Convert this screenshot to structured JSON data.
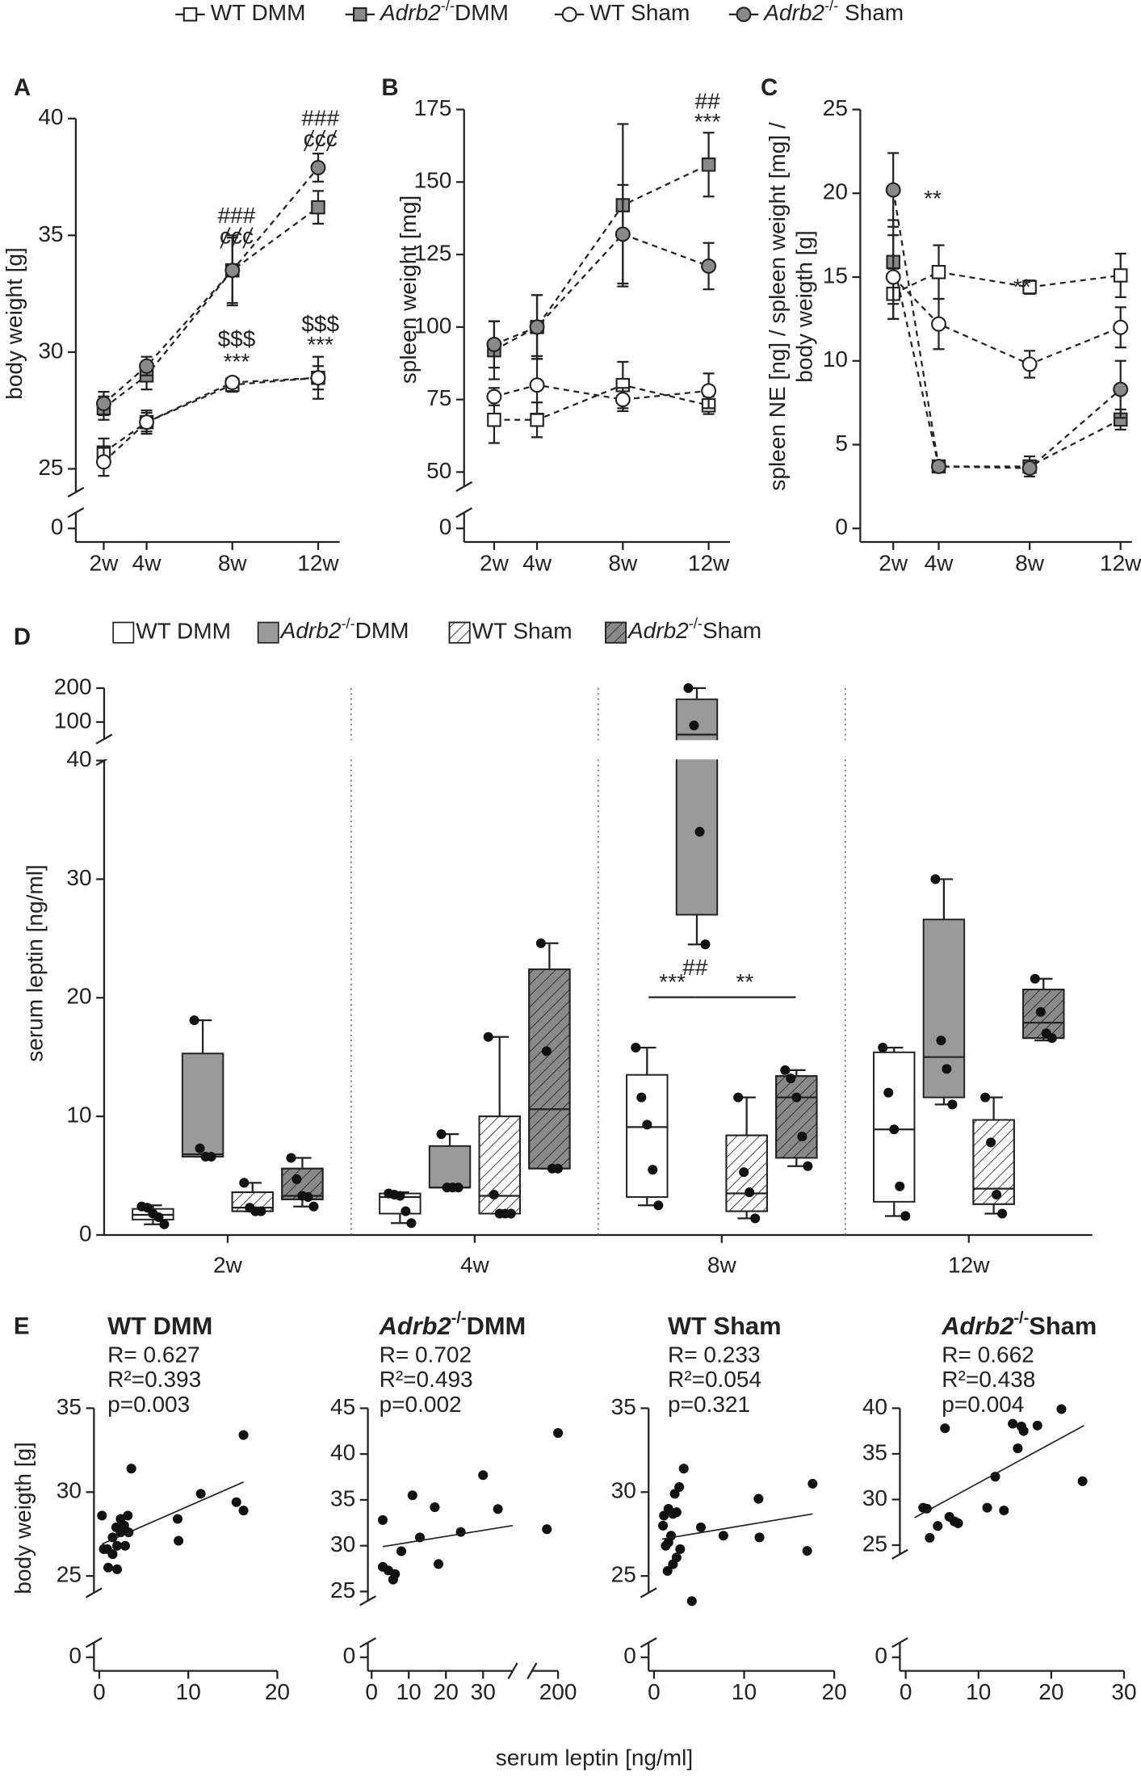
{
  "legend": [
    {
      "name": "WT DMM",
      "marker": "square",
      "color": "#ffffff"
    },
    {
      "name": "Adrb2-/-DMM",
      "marker": "square",
      "color": "#8a8a8a"
    },
    {
      "name": "WT Sham",
      "marker": "circle",
      "color": "#ffffff"
    },
    {
      "name": "Adrb2-/- Sham",
      "marker": "circle",
      "color": "#8a8a8a"
    }
  ],
  "e_xlabel": "serum leptin [ng/ml]",
  "chart_data": [
    {
      "type": "line",
      "panel": "A",
      "ylabel": "body weight [g]",
      "line_style": "dashed",
      "x": [
        2,
        4,
        8,
        12
      ],
      "xlim": [
        0.7,
        13
      ],
      "xticks": [
        {
          "value": 2,
          "label": "2w"
        },
        {
          "value": 4,
          "label": "4w"
        },
        {
          "value": 8,
          "label": "8w"
        },
        {
          "value": 12,
          "label": "12w"
        }
      ],
      "ylim": [
        0,
        40
      ],
      "ybreak": [
        1,
        24
      ],
      "yticks": [
        0,
        25,
        30,
        35,
        40
      ],
      "series": [
        {
          "values": [
            25.7,
            27.0,
            28.6,
            28.9
          ],
          "errors": [
            0.6,
            0.5,
            0.3,
            0.9
          ]
        },
        {
          "values": [
            27.6,
            29.0,
            33.5,
            36.2
          ],
          "errors": [
            0.5,
            0.6,
            1.5,
            0.7
          ]
        },
        {
          "values": [
            25.3,
            27.0,
            28.7,
            28.9
          ],
          "errors": [
            0.6,
            0.4,
            0.2,
            0.5
          ]
        },
        {
          "values": [
            27.8,
            29.4,
            33.5,
            37.9
          ],
          "errors": [
            0.5,
            0.4,
            1.4,
            0.6
          ]
        }
      ],
      "annotations": [
        "###",
        "ȼȼȼ",
        "$$$",
        "***",
        "###",
        "ȼȼȼ",
        "$$$",
        "***"
      ]
    },
    {
      "type": "line",
      "panel": "B",
      "ylabel": "spleen weight [mg]",
      "line_style": "dashed",
      "x": [
        2,
        4,
        8,
        12
      ],
      "xlim": [
        0.6,
        13
      ],
      "xticks": [
        {
          "value": 2,
          "label": "2w"
        },
        {
          "value": 4,
          "label": "4w"
        },
        {
          "value": 8,
          "label": "8w"
        },
        {
          "value": 12,
          "label": "12w"
        }
      ],
      "ylim": [
        0,
        175
      ],
      "ybreak": [
        5,
        45
      ],
      "yticks": [
        0,
        50,
        75,
        100,
        125,
        150,
        175
      ],
      "series": [
        {
          "values": [
            68,
            68,
            80,
            73
          ],
          "errors": [
            8,
            6,
            8,
            3
          ]
        },
        {
          "values": [
            92,
            100,
            142,
            156
          ],
          "errors": [
            10,
            11,
            28,
            11
          ]
        },
        {
          "values": [
            76,
            80,
            75,
            78
          ],
          "errors": [
            3,
            10,
            4,
            6
          ]
        },
        {
          "values": [
            94,
            100,
            132,
            121
          ],
          "errors": [
            8,
            11,
            17,
            8
          ]
        }
      ],
      "annotations": [
        "##",
        "***"
      ]
    },
    {
      "type": "line",
      "panel": "C",
      "ylabel": [
        "spleen NE [ng] / spleen weight [mg] /",
        "body weigth [g]"
      ],
      "line_style": "dashed",
      "x": [
        2,
        4,
        8,
        12
      ],
      "xlim": [
        0.55,
        12.5
      ],
      "xticks": [
        {
          "value": 2,
          "label": "2w"
        },
        {
          "value": 4,
          "label": "4w"
        },
        {
          "value": 8,
          "label": "8w"
        },
        {
          "value": 12,
          "label": "12w"
        }
      ],
      "ylim": [
        0,
        25
      ],
      "yticks": [
        0,
        5,
        10,
        15,
        20,
        25
      ],
      "series": [
        {
          "values": [
            14.0,
            15.3,
            14.4,
            15.1
          ],
          "errors": [
            1.5,
            1.6,
            0.4,
            1.3
          ]
        },
        {
          "values": [
            15.9,
            3.7,
            3.7,
            6.5
          ],
          "errors": [
            2.5,
            0.3,
            0.6,
            0.6
          ]
        },
        {
          "values": [
            15.0,
            12.2,
            9.8,
            12.0
          ],
          "errors": [
            2.5,
            1.5,
            0.8,
            1.2
          ]
        },
        {
          "values": [
            20.2,
            3.7,
            3.6,
            8.3
          ],
          "errors": [
            2.2,
            0.3,
            0.3,
            1.7
          ]
        }
      ],
      "annotations": [
        "**",
        "**"
      ]
    },
    {
      "type": "box",
      "panel": "D",
      "ylabel": "serum leptin [ng/ml]",
      "categories": [
        "2w",
        "4w",
        "8w",
        "12w"
      ],
      "ylim": [
        0,
        200
      ],
      "ybreak": [
        40,
        50
      ],
      "yticks": [
        0,
        10,
        20,
        30,
        40,
        100,
        200
      ],
      "series": [
        {
          "name": "WT DMM",
          "color": "#ffffff",
          "hatch": false,
          "boxes": [
            {
              "min": 0.9,
              "q1": 1.3,
              "median": 1.7,
              "q3": 2.2,
              "max": 2.5,
              "points": [
                2.4,
                2.3,
                1.8,
                1.5,
                0.9
              ]
            },
            {
              "min": 1.0,
              "q1": 1.8,
              "median": 3.2,
              "q3": 3.5,
              "max": 3.6,
              "points": [
                3.5,
                3.4,
                3.3,
                2.0,
                1.0
              ]
            },
            {
              "min": 2.5,
              "q1": 3.2,
              "median": 9.1,
              "q3": 13.5,
              "max": 15.8,
              "points": [
                15.8,
                11.6,
                9.3,
                5.5,
                2.5
              ]
            },
            {
              "min": 1.6,
              "q1": 2.8,
              "median": 8.9,
              "q3": 15.4,
              "max": 15.8,
              "points": [
                15.8,
                12.0,
                8.9,
                4.1,
                1.6
              ]
            }
          ]
        },
        {
          "name": "Adrb2-/-DMM",
          "color": "#9a9a9a",
          "hatch": false,
          "boxes": [
            {
              "min": 6.6,
              "q1": 6.6,
              "median": 6.8,
              "q3": 15.3,
              "max": 18.1,
              "points": [
                18.1,
                7.3,
                6.6,
                6.6
              ]
            },
            {
              "min": 4.0,
              "q1": 4.0,
              "median": 4.0,
              "q3": 7.5,
              "max": 8.5,
              "points": [
                8.5,
                4.0,
                4.0,
                4.0
              ]
            },
            {
              "min": 24.5,
              "q1": 27,
              "median": 63,
              "q3": 167,
              "max": 200,
              "points": [
                200,
                90,
                34,
                24.5
              ]
            },
            {
              "min": 11.0,
              "q1": 11.6,
              "median": 15.0,
              "q3": 26.6,
              "max": 30.0,
              "points": [
                30.0,
                16.4,
                14.0,
                11.0
              ]
            }
          ]
        },
        {
          "name": "WT Sham",
          "color": "#ffffff",
          "hatch": true,
          "boxes": [
            {
              "min": 2.0,
              "q1": 2.0,
              "median": 2.3,
              "q3": 3.6,
              "max": 4.4,
              "points": [
                4.4,
                2.3,
                2.0,
                2.0
              ]
            },
            {
              "min": 1.8,
              "q1": 1.8,
              "median": 3.3,
              "q3": 10.0,
              "max": 16.7,
              "points": [
                16.7,
                3.4,
                1.8,
                1.8,
                1.8
              ]
            },
            {
              "min": 1.4,
              "q1": 2.0,
              "median": 3.5,
              "q3": 8.4,
              "max": 11.6,
              "points": [
                11.6,
                5.3,
                3.6,
                1.4
              ]
            },
            {
              "min": 1.8,
              "q1": 2.6,
              "median": 3.9,
              "q3": 9.7,
              "max": 11.6,
              "points": [
                11.6,
                7.8,
                3.4,
                1.8
              ]
            }
          ]
        },
        {
          "name": "Adrb2-/-Sham",
          "color": "#8a8a8a",
          "hatch": true,
          "boxes": [
            {
              "min": 2.4,
              "q1": 3.0,
              "median": 3.3,
              "q3": 5.6,
              "max": 6.5,
              "points": [
                6.5,
                4.7,
                3.3,
                3.2,
                2.4
              ]
            },
            {
              "min": 5.6,
              "q1": 5.6,
              "median": 10.6,
              "q3": 22.4,
              "max": 24.6,
              "points": [
                24.6,
                15.5,
                5.6,
                5.6
              ]
            },
            {
              "min": 5.8,
              "q1": 6.5,
              "median": 11.6,
              "q3": 13.4,
              "max": 13.9,
              "points": [
                13.9,
                13.2,
                11.6,
                8.3,
                5.8
              ]
            },
            {
              "min": 16.4,
              "q1": 16.6,
              "median": 17.9,
              "q3": 20.7,
              "max": 21.6,
              "points": [
                21.6,
                18.8,
                17.0,
                16.6
              ]
            }
          ]
        }
      ],
      "annotations": [
        "***",
        "**",
        "##"
      ]
    },
    {
      "type": "scatter",
      "panel": "E",
      "title": "WT DMM",
      "stats": [
        "R= 0.627",
        "R²=0.393",
        "p=0.003"
      ],
      "ylabel": "body weigth [g]",
      "x": [
        0.3,
        0.5,
        0.9,
        1.0,
        1.5,
        1.5,
        1.9,
        2.0,
        2.0,
        2.4,
        2.4,
        2.8,
        2.9,
        3.2,
        3.3,
        3.6,
        8.8,
        8.9,
        11.4,
        15.4,
        16.2,
        16.2
      ],
      "y": [
        28.6,
        26.6,
        26.6,
        25.5,
        26.3,
        27.3,
        27.9,
        26.8,
        25.4,
        28.4,
        27.6,
        28.0,
        26.8,
        28.6,
        27.6,
        31.4,
        28.4,
        27.1,
        29.9,
        29.4,
        33.4,
        28.9
      ],
      "fit": {
        "x": [
          0.3,
          16.2
        ],
        "y": [
          26.9,
          30.6
        ]
      },
      "xlim": [
        -0.6,
        20
      ],
      "xticks": [
        0,
        10,
        20
      ],
      "ylim": [
        0,
        35
      ],
      "ybreak": [
        1,
        24
      ],
      "yticks": [
        0,
        25,
        30,
        35
      ]
    },
    {
      "type": "scatter",
      "title": "Adrb2-/-DMM",
      "stats": [
        "R= 0.702",
        "R²=0.493",
        "p=0.002"
      ],
      "x": [
        3,
        3,
        4.5,
        5.8,
        6.3,
        8,
        11,
        13,
        17,
        18,
        24,
        30,
        34,
        197,
        200
      ],
      "y": [
        32.8,
        27.7,
        27.3,
        26.3,
        26.9,
        29.4,
        35.5,
        30.9,
        34.2,
        28.0,
        31.5,
        37.7,
        34.0,
        31.8,
        42.3
      ],
      "fit": {
        "x": [
          3,
          38
        ],
        "y": [
          29.9,
          32.2
        ]
      },
      "xlim": [
        -1,
        200
      ],
      "xbreak": [
        38,
        193
      ],
      "xticks": [
        0,
        10,
        20,
        30,
        200
      ],
      "ylim": [
        0,
        45
      ],
      "ybreak": [
        1,
        24
      ],
      "yticks": [
        0,
        25,
        30,
        35,
        40,
        45
      ]
    },
    {
      "type": "scatter",
      "title": "WT Sham",
      "stats": [
        "R= 0.233",
        "R²=0.054",
        "p=0.321"
      ],
      "x": [
        1.0,
        1.1,
        1.3,
        1.5,
        1.6,
        1.6,
        1.9,
        2.1,
        2.1,
        2.3,
        2.5,
        2.5,
        2.8,
        2.9,
        3.3,
        4.2,
        5.2,
        7.7,
        11.6,
        11.7,
        17.0,
        17.6
      ],
      "y": [
        28.0,
        28.6,
        26.8,
        25.3,
        27.0,
        29.0,
        27.4,
        28.7,
        25.7,
        29.9,
        28.8,
        26.1,
        30.3,
        26.6,
        31.4,
        23.5,
        27.9,
        27.4,
        29.6,
        27.3,
        26.5,
        30.5
      ],
      "fit": {
        "x": [
          0.9,
          17.6
        ],
        "y": [
          27.2,
          28.7
        ]
      },
      "xlim": [
        -0.6,
        20
      ],
      "xticks": [
        0,
        10,
        20
      ],
      "ylim": [
        0,
        35
      ],
      "ybreak": [
        1,
        24
      ],
      "yticks": [
        0,
        25,
        30,
        35
      ]
    },
    {
      "type": "scatter",
      "title": "Adrb2-/-Sham",
      "stats": [
        "R= 0.662",
        "R²=0.438",
        "p=0.004"
      ],
      "x": [
        2.4,
        2.9,
        3.3,
        4.4,
        5.4,
        6.0,
        6.7,
        7.2,
        11.2,
        12.3,
        13.5,
        14.7,
        15.4,
        15.9,
        16.2,
        18.1,
        21.4,
        24.3
      ],
      "y": [
        29.1,
        29.0,
        25.8,
        27.1,
        37.8,
        28.1,
        27.6,
        27.4,
        29.1,
        32.5,
        28.8,
        38.3,
        35.6,
        38.0,
        37.5,
        38.1,
        39.9,
        32.0
      ],
      "fit": {
        "x": [
          1.2,
          24.5
        ],
        "y": [
          28.0,
          38.1
        ]
      },
      "xlim": [
        -0.8,
        30
      ],
      "xticks": [
        0,
        10,
        20,
        30
      ],
      "ylim": [
        0,
        40
      ],
      "ybreak": [
        1,
        24
      ],
      "yticks": [
        0,
        25,
        30,
        35,
        40
      ]
    }
  ]
}
